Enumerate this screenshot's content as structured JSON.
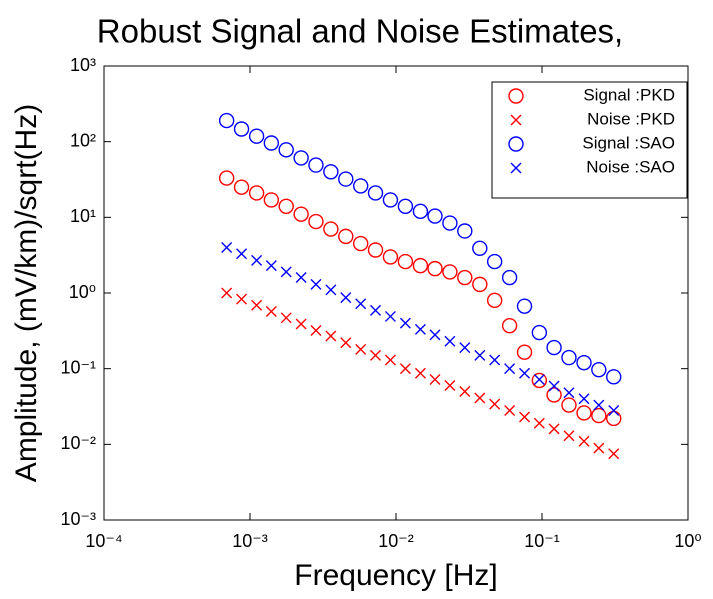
{
  "chart_data": {
    "type": "scatter",
    "title": "Robust Signal and Noise Estimates,",
    "xlabel": "Frequency [Hz]",
    "ylabel": "Amplitude, (mV/km)/sqrt(Hz)",
    "xscale": "log",
    "yscale": "log",
    "xlim": [
      0.0001,
      1
    ],
    "ylim": [
      0.001,
      1000
    ],
    "xticks": [
      {
        "value": 0.0001,
        "label": "10⁻⁴"
      },
      {
        "value": 0.001,
        "label": "10⁻³"
      },
      {
        "value": 0.01,
        "label": "10⁻²"
      },
      {
        "value": 0.1,
        "label": "10⁻¹"
      },
      {
        "value": 1,
        "label": "10⁰"
      }
    ],
    "yticks": [
      {
        "value": 0.001,
        "label": "10⁻³"
      },
      {
        "value": 0.01,
        "label": "10⁻²"
      },
      {
        "value": 0.1,
        "label": "10⁻¹"
      },
      {
        "value": 1,
        "label": "10⁰"
      },
      {
        "value": 10,
        "label": "10¹"
      },
      {
        "value": 100,
        "label": "10²"
      },
      {
        "value": 1000,
        "label": "10³"
      }
    ],
    "grid": false,
    "legend": "top-right",
    "x": [
      0.000692,
      0.000875,
      0.00111,
      0.0014,
      0.00177,
      0.00224,
      0.00283,
      0.00358,
      0.00453,
      0.00573,
      0.00724,
      0.00916,
      0.0116,
      0.0147,
      0.0185,
      0.0234,
      0.0296,
      0.0375,
      0.0474,
      0.06,
      0.0759,
      0.0959,
      0.121,
      0.153,
      0.194,
      0.245,
      0.31
    ],
    "series": [
      {
        "name": "Signal :PKD",
        "color": "#ff0000",
        "marker": "o",
        "values": [
          33,
          25,
          21,
          17,
          14,
          11,
          8.8,
          7.0,
          5.6,
          4.5,
          3.7,
          3.0,
          2.6,
          2.3,
          2.1,
          1.9,
          1.6,
          1.3,
          0.8,
          0.37,
          0.165,
          0.07,
          0.045,
          0.033,
          0.026,
          0.024,
          0.022
        ]
      },
      {
        "name": "Noise :PKD",
        "color": "#ff0000",
        "marker": "x",
        "values": [
          1.0,
          0.83,
          0.69,
          0.57,
          0.47,
          0.39,
          0.32,
          0.27,
          0.22,
          0.18,
          0.15,
          0.13,
          0.1,
          0.087,
          0.072,
          0.06,
          0.05,
          0.041,
          0.034,
          0.028,
          0.023,
          0.019,
          0.016,
          0.013,
          0.011,
          0.0089,
          0.0075
        ]
      },
      {
        "name": "Signal :SAO",
        "color": "#0000ff",
        "marker": "o",
        "values": [
          190,
          147,
          118,
          96,
          78,
          61,
          49,
          40,
          32,
          26,
          21,
          17,
          14,
          12,
          10.4,
          8.4,
          6.6,
          3.9,
          2.6,
          1.6,
          0.67,
          0.3,
          0.19,
          0.14,
          0.12,
          0.097,
          0.078
        ]
      },
      {
        "name": "Noise :SAO",
        "color": "#0000ff",
        "marker": "x",
        "values": [
          4.0,
          3.3,
          2.7,
          2.3,
          1.9,
          1.6,
          1.3,
          1.1,
          0.87,
          0.72,
          0.59,
          0.49,
          0.4,
          0.33,
          0.28,
          0.23,
          0.19,
          0.15,
          0.13,
          0.1,
          0.087,
          0.072,
          0.059,
          0.048,
          0.04,
          0.033,
          0.028
        ]
      }
    ]
  }
}
